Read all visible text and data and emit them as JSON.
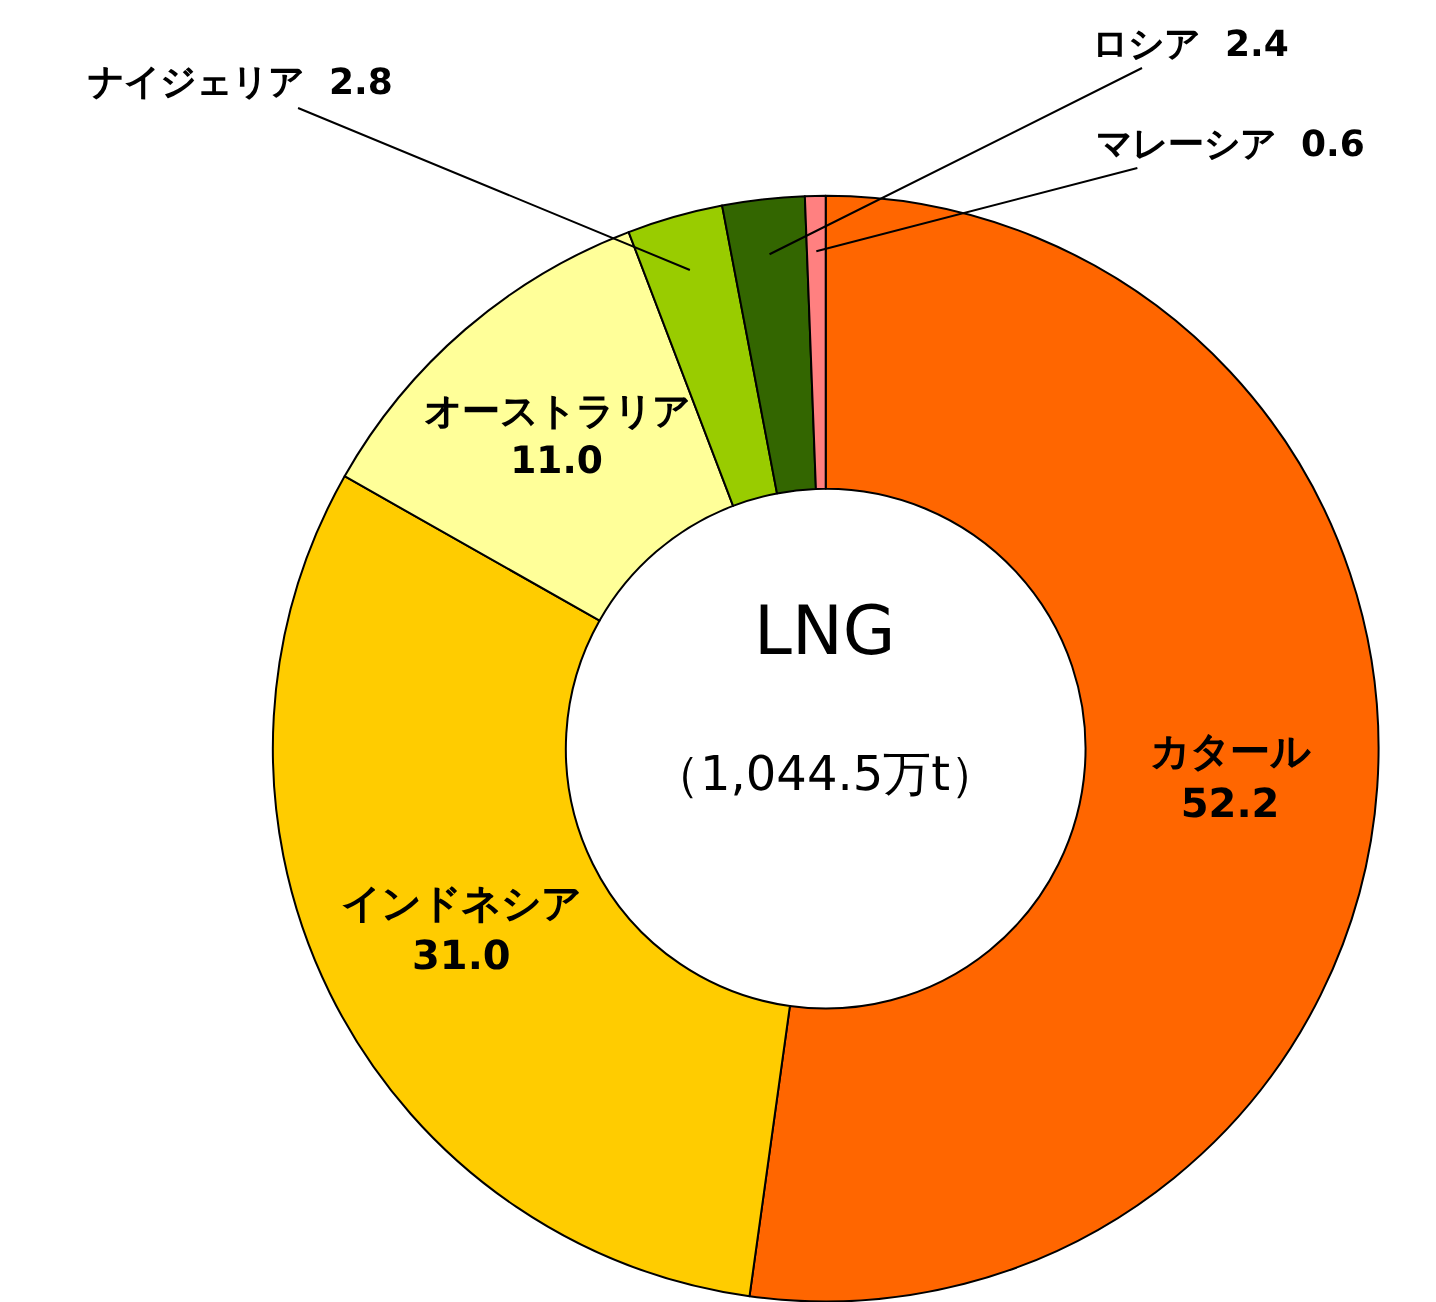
{
  "chart_data": {
    "type": "donut",
    "categories": [
      "カタール",
      "インドネシア",
      "オーストラリア",
      "ナイジェリア",
      "ロシア",
      "マレーシア"
    ],
    "values": [
      52.2,
      31.0,
      11.0,
      2.8,
      2.4,
      0.6
    ],
    "value_labels": [
      "52.2",
      "31.0",
      "11.0",
      "2.8",
      "2.4",
      "0.6"
    ],
    "colors": [
      "#ff6600",
      "#ffcc00",
      "#ffff99",
      "#99cc00",
      "#336600",
      "#ff8080"
    ],
    "annotations": [
      "LNG",
      "（1,044.5万t）"
    ]
  }
}
